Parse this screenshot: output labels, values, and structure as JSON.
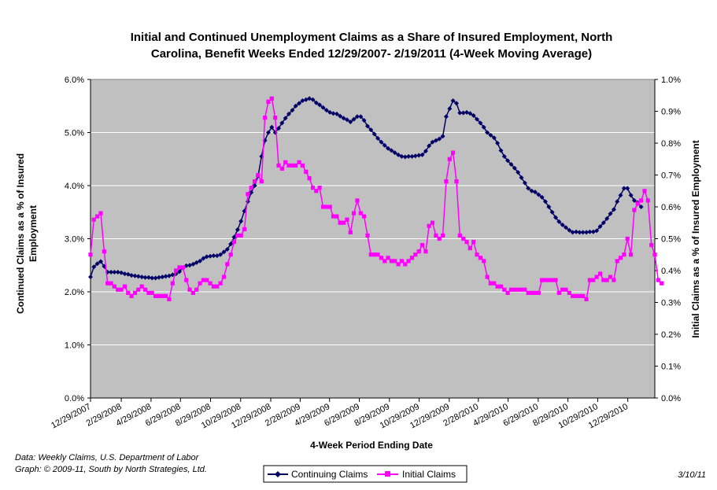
{
  "chart_data": {
    "type": "line",
    "title_line1": "Initial and Continued Unemployment Claims as a Share of Insured Employment, North",
    "title_line2": "Carolina, Benefit Weeks Ended 12/29/2007- 2/19/2011 (4-Week Moving Average)",
    "xlabel": "4-Week Period Ending Date",
    "ylabel_left_line1": "Continued Claims as a % of Insured",
    "ylabel_left_line2": "Employment",
    "ylabel_right": "Initial Claims as a % of Insured Employment",
    "x_tick_labels": [
      "12/29/2007",
      "2/29/2008",
      "4/29/2008",
      "6/29/2008",
      "8/29/2008",
      "10/29/2008",
      "12/29/2008",
      "2/28/2009",
      "4/29/2009",
      "6/29/2009",
      "8/29/2009",
      "10/29/2009",
      "12/29/2009",
      "2/28/2010",
      "4/29/2010",
      "6/29/2010",
      "8/29/2010",
      "10/29/2010",
      "12/29/2010"
    ],
    "x_ticks_weeks": [
      0,
      9,
      17.7,
      26.3,
      35.1,
      43.9,
      52.7,
      61.3,
      69.9,
      78.6,
      87.4,
      96.1,
      104.9,
      113.4,
      122.1,
      130.9,
      139.6,
      148.3,
      157.1
    ],
    "x_range_weeks": [
      0,
      165
    ],
    "y_left_ticks": [
      "0.0%",
      "1.0%",
      "2.0%",
      "3.0%",
      "4.0%",
      "5.0%",
      "6.0%"
    ],
    "y_left_lim": [
      0,
      6
    ],
    "y_right_ticks": [
      "0.0%",
      "0.1%",
      "0.2%",
      "0.3%",
      "0.4%",
      "0.5%",
      "0.6%",
      "0.7%",
      "0.8%",
      "0.9%",
      "1.0%"
    ],
    "y_right_lim": [
      0,
      1
    ],
    "grid": "horizontal",
    "plot_background": "#c0c0c0",
    "series": [
      {
        "name": "Continuing Claims",
        "axis": "left",
        "color": "#000066",
        "marker": "diamond",
        "values": [
          2.28,
          2.47,
          2.53,
          2.57,
          2.48,
          2.37,
          2.37,
          2.37,
          2.37,
          2.36,
          2.34,
          2.33,
          2.31,
          2.3,
          2.29,
          2.28,
          2.27,
          2.27,
          2.26,
          2.26,
          2.27,
          2.28,
          2.29,
          2.3,
          2.32,
          2.34,
          2.38,
          2.45,
          2.49,
          2.5,
          2.52,
          2.55,
          2.58,
          2.63,
          2.66,
          2.67,
          2.68,
          2.68,
          2.7,
          2.75,
          2.8,
          2.9,
          3.03,
          3.17,
          3.33,
          3.52,
          3.7,
          3.87,
          4.0,
          4.18,
          4.55,
          4.85,
          5.0,
          5.1,
          5.0,
          5.08,
          5.18,
          5.27,
          5.35,
          5.42,
          5.5,
          5.55,
          5.6,
          5.62,
          5.64,
          5.62,
          5.56,
          5.52,
          5.47,
          5.42,
          5.38,
          5.36,
          5.35,
          5.31,
          5.27,
          5.24,
          5.2,
          5.25,
          5.3,
          5.3,
          5.23,
          5.12,
          5.05,
          4.97,
          4.89,
          4.82,
          4.76,
          4.7,
          4.66,
          4.62,
          4.58,
          4.55,
          4.54,
          4.55,
          4.55,
          4.56,
          4.57,
          4.58,
          4.65,
          4.75,
          4.82,
          4.85,
          4.88,
          4.93,
          5.3,
          5.45,
          5.6,
          5.55,
          5.37,
          5.37,
          5.38,
          5.36,
          5.32,
          5.25,
          5.18,
          5.1,
          5.0,
          4.95,
          4.9,
          4.8,
          4.66,
          4.55,
          4.47,
          4.4,
          4.33,
          4.25,
          4.15,
          4.05,
          3.95,
          3.9,
          3.88,
          3.83,
          3.78,
          3.7,
          3.6,
          3.5,
          3.4,
          3.32,
          3.26,
          3.21,
          3.16,
          3.12,
          3.13,
          3.12,
          3.12,
          3.12,
          3.13,
          3.13,
          3.15,
          3.23,
          3.3,
          3.38,
          3.47,
          3.55,
          3.7,
          3.82,
          3.95,
          3.95,
          3.82,
          3.72,
          3.68,
          3.6
        ]
      },
      {
        "name": "Initial Claims",
        "axis": "right",
        "color": "#ff00ff",
        "marker": "square",
        "values": [
          0.45,
          0.56,
          0.57,
          0.58,
          0.46,
          0.36,
          0.36,
          0.35,
          0.34,
          0.34,
          0.35,
          0.33,
          0.32,
          0.33,
          0.34,
          0.35,
          0.34,
          0.33,
          0.33,
          0.32,
          0.32,
          0.32,
          0.32,
          0.31,
          0.36,
          0.4,
          0.41,
          0.41,
          0.37,
          0.34,
          0.33,
          0.34,
          0.36,
          0.37,
          0.37,
          0.36,
          0.35,
          0.35,
          0.36,
          0.38,
          0.42,
          0.45,
          0.49,
          0.51,
          0.51,
          0.53,
          0.64,
          0.66,
          0.68,
          0.7,
          0.68,
          0.88,
          0.93,
          0.94,
          0.88,
          0.73,
          0.72,
          0.74,
          0.73,
          0.73,
          0.73,
          0.74,
          0.73,
          0.71,
          0.69,
          0.66,
          0.65,
          0.66,
          0.6,
          0.6,
          0.6,
          0.57,
          0.57,
          0.55,
          0.55,
          0.56,
          0.52,
          0.58,
          0.62,
          0.58,
          0.57,
          0.51,
          0.45,
          0.45,
          0.45,
          0.44,
          0.43,
          0.44,
          0.43,
          0.43,
          0.42,
          0.43,
          0.42,
          0.43,
          0.44,
          0.45,
          0.46,
          0.48,
          0.46,
          0.54,
          0.55,
          0.51,
          0.5,
          0.51,
          0.68,
          0.75,
          0.77,
          0.68,
          0.51,
          0.5,
          0.49,
          0.47,
          0.49,
          0.45,
          0.44,
          0.43,
          0.38,
          0.36,
          0.36,
          0.35,
          0.35,
          0.34,
          0.33,
          0.34,
          0.34,
          0.34,
          0.34,
          0.34,
          0.33,
          0.33,
          0.33,
          0.33,
          0.37,
          0.37,
          0.37,
          0.37,
          0.37,
          0.33,
          0.34,
          0.34,
          0.33,
          0.32,
          0.32,
          0.32,
          0.32,
          0.31,
          0.37,
          0.37,
          0.38,
          0.39,
          0.37,
          0.37,
          0.38,
          0.37,
          0.43,
          0.44,
          0.45,
          0.5,
          0.45,
          0.59,
          0.61,
          0.62,
          0.65,
          0.62,
          0.48,
          0.45,
          0.37,
          0.36
        ]
      }
    ],
    "legend": {
      "placement": "bottom-center"
    }
  },
  "footer": {
    "source_line1": "Data:  Weekly Claims, U.S. Department of Labor",
    "source_line2": "Graph: © 2009-11, South by North Strategies, Ltd.",
    "date": "3/10/11"
  }
}
